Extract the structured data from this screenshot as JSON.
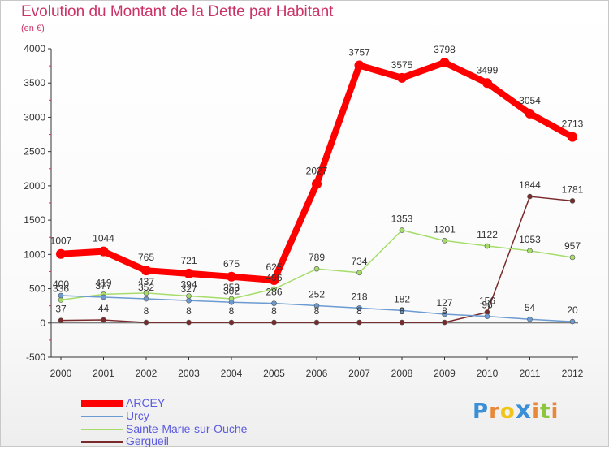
{
  "title": "Evolution du Montant de la Dette par Habitant",
  "subtitle": "(en €)",
  "logo_text": "Proxiti",
  "chart_data": {
    "type": "line",
    "title": "Evolution du Montant de la Dette par Habitant",
    "ylabel": "(en €)",
    "xlabel": "",
    "ylim": [
      -500,
      4000
    ],
    "yticks": [
      -500,
      0,
      500,
      1000,
      1500,
      2000,
      2500,
      3000,
      3500,
      4000
    ],
    "grid": false,
    "legend": "bottom-left",
    "categories": [
      "2000",
      "2001",
      "2002",
      "2003",
      "2004",
      "2005",
      "2006",
      "2007",
      "2008",
      "2009",
      "2010",
      "2011",
      "2012"
    ],
    "series": [
      {
        "name": "ARCEY",
        "color": "#ff0000",
        "values": [
          1007,
          1044,
          765,
          721,
          675,
          625,
          2027,
          3757,
          3575,
          3798,
          3499,
          3054,
          2713
        ]
      },
      {
        "name": "Urcy",
        "color": "#6b9bd1",
        "values": [
          400,
          377,
          352,
          327,
          302,
          286,
          252,
          218,
          182,
          127,
          96,
          54,
          20
        ]
      },
      {
        "name": "Sainte-Marie-sur-Ouche",
        "color": "#a6dd6a",
        "values": [
          336,
          419,
          437,
          394,
          353,
          496,
          789,
          734,
          1353,
          1201,
          1122,
          1053,
          957
        ]
      },
      {
        "name": "Gergueil",
        "color": "#7a2a2a",
        "values": [
          37,
          44,
          8,
          8,
          8,
          8,
          8,
          8,
          8,
          8,
          156,
          1844,
          1781
        ]
      }
    ]
  }
}
